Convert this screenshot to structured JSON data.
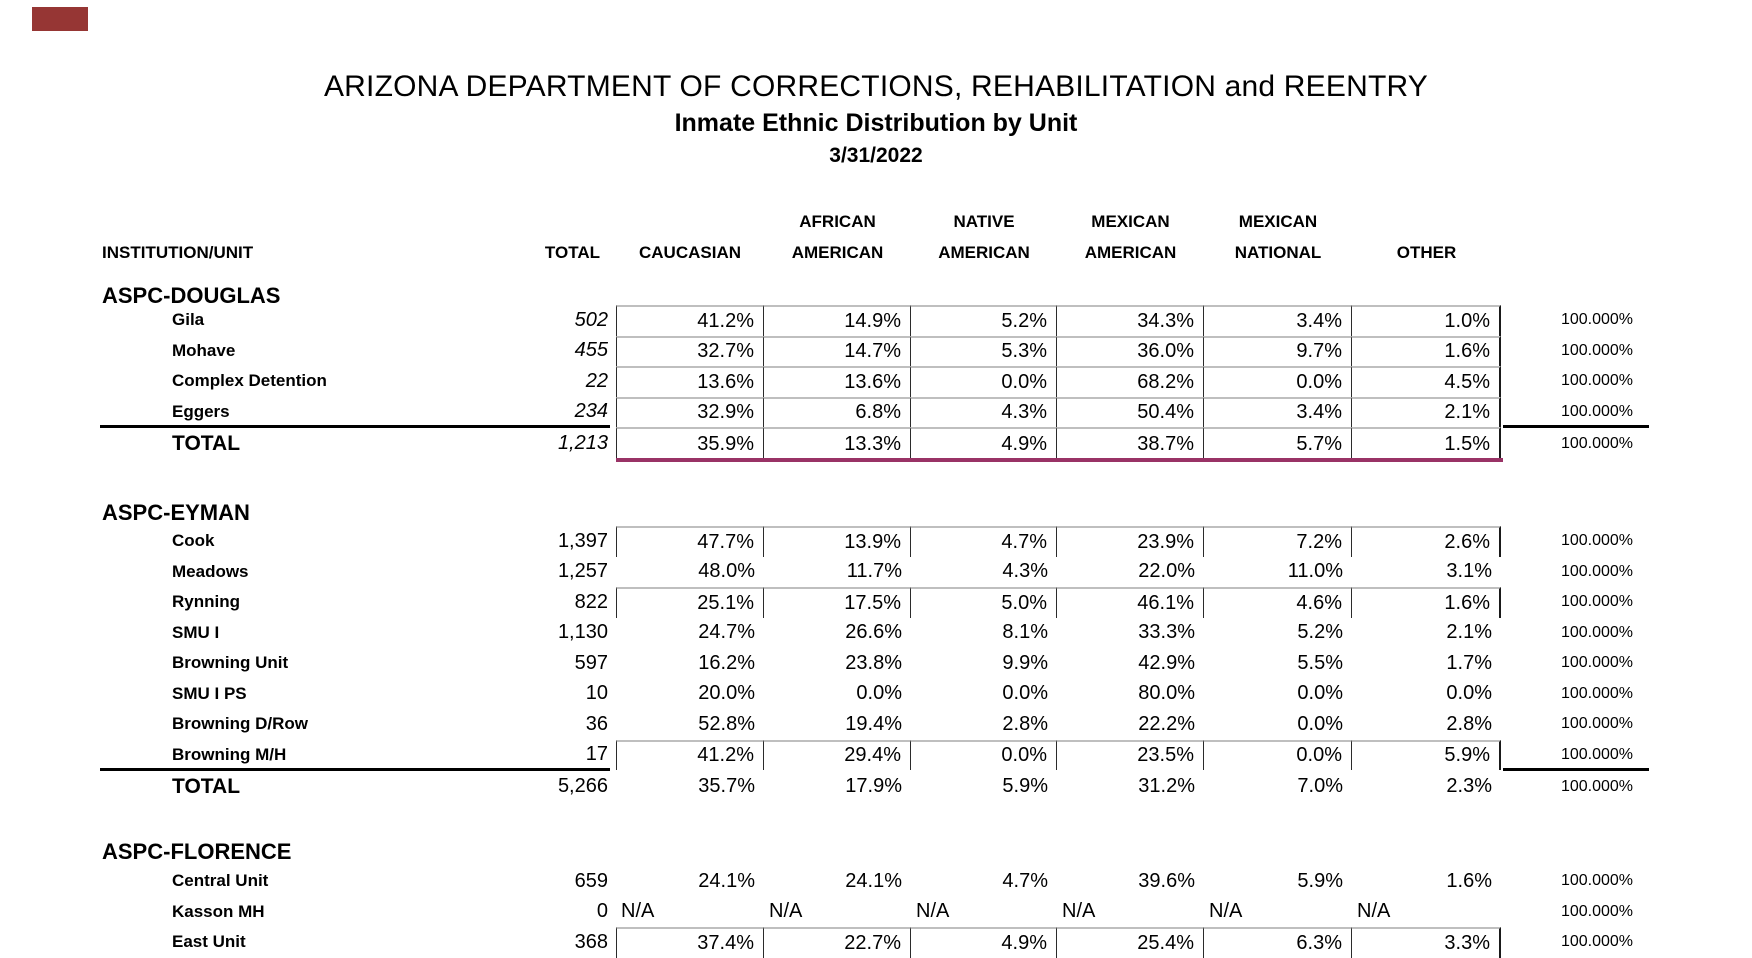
{
  "colors": {
    "corner_marker": "#963634",
    "maroon_rule": "#993366",
    "grid_line": "#bfbfbf",
    "cell_border": "#2b2b2b"
  },
  "header": {
    "title": "ARIZONA DEPARTMENT OF CORRECTIONS, REHABILITATION and REENTRY",
    "subtitle": "Inmate Ethnic Distribution by Unit",
    "date": "3/31/2022"
  },
  "table": {
    "unit_header": "INSTITUTION/UNIT",
    "total_header": "TOTAL",
    "ethnic_headers": [
      {
        "line1": "",
        "line2": "CAUCASIAN"
      },
      {
        "line1": "AFRICAN",
        "line2": "AMERICAN"
      },
      {
        "line1": "NATIVE",
        "line2": "AMERICAN"
      },
      {
        "line1": "MEXICAN",
        "line2": "AMERICAN"
      },
      {
        "line1": "MEXICAN",
        "line2": "NATIONAL"
      },
      {
        "line1": "",
        "line2": "OTHER"
      }
    ],
    "total_label": "TOTAL",
    "row_sum": "100.000%",
    "sections": [
      {
        "name": "ASPC-DOUGLAS",
        "italic_totals": true,
        "rows": [
          {
            "unit": "Gila",
            "total": "502",
            "values": [
              "41.2%",
              "14.9%",
              "5.2%",
              "34.3%",
              "3.4%",
              "1.0%"
            ],
            "bordered": true
          },
          {
            "unit": "Mohave",
            "total": "455",
            "values": [
              "32.7%",
              "14.7%",
              "5.3%",
              "36.0%",
              "9.7%",
              "1.6%"
            ],
            "bordered": true
          },
          {
            "unit": "Complex Detention",
            "total": "22",
            "values": [
              "13.6%",
              "13.6%",
              "0.0%",
              "68.2%",
              "0.0%",
              "4.5%"
            ],
            "bordered": true
          },
          {
            "unit": "Eggers",
            "total": "234",
            "values": [
              "32.9%",
              "6.8%",
              "4.3%",
              "50.4%",
              "3.4%",
              "2.1%"
            ],
            "bordered": true,
            "underline": true
          }
        ],
        "total_row": {
          "total": "1,213",
          "values": [
            "35.9%",
            "13.3%",
            "4.9%",
            "38.7%",
            "5.7%",
            "1.5%"
          ],
          "bordered": true,
          "maroon": true
        }
      },
      {
        "name": "ASPC-EYMAN",
        "italic_totals": false,
        "rows": [
          {
            "unit": "Cook",
            "total": "1,397",
            "values": [
              "47.7%",
              "13.9%",
              "4.7%",
              "23.9%",
              "7.2%",
              "2.6%"
            ],
            "bordered": true
          },
          {
            "unit": "Meadows",
            "total": "1,257",
            "values": [
              "48.0%",
              "11.7%",
              "4.3%",
              "22.0%",
              "11.0%",
              "3.1%"
            ],
            "bordered": false
          },
          {
            "unit": "Rynning",
            "total": "822",
            "values": [
              "25.1%",
              "17.5%",
              "5.0%",
              "46.1%",
              "4.6%",
              "1.6%"
            ],
            "bordered": true
          },
          {
            "unit": "SMU I",
            "total": "1,130",
            "values": [
              "24.7%",
              "26.6%",
              "8.1%",
              "33.3%",
              "5.2%",
              "2.1%"
            ],
            "bordered": false
          },
          {
            "unit": "Browning Unit",
            "total": "597",
            "values": [
              "16.2%",
              "23.8%",
              "9.9%",
              "42.9%",
              "5.5%",
              "1.7%"
            ],
            "bordered": false
          },
          {
            "unit": "SMU I PS",
            "total": "10",
            "values": [
              "20.0%",
              "0.0%",
              "0.0%",
              "80.0%",
              "0.0%",
              "0.0%"
            ],
            "bordered": false
          },
          {
            "unit": "Browning D/Row",
            "total": "36",
            "values": [
              "52.8%",
              "19.4%",
              "2.8%",
              "22.2%",
              "0.0%",
              "2.8%"
            ],
            "bordered": false
          },
          {
            "unit": "Browning M/H",
            "total": "17",
            "values": [
              "41.2%",
              "29.4%",
              "0.0%",
              "23.5%",
              "0.0%",
              "5.9%"
            ],
            "bordered": true,
            "underline": true
          }
        ],
        "total_row": {
          "total": "5,266",
          "values": [
            "35.7%",
            "17.9%",
            "5.9%",
            "31.2%",
            "7.0%",
            "2.3%"
          ],
          "bordered": false,
          "maroon": false
        }
      },
      {
        "name": "ASPC-FLORENCE",
        "italic_totals": false,
        "rows": [
          {
            "unit": "Central Unit",
            "total": "659",
            "values": [
              "24.1%",
              "24.1%",
              "4.7%",
              "39.6%",
              "5.9%",
              "1.6%"
            ],
            "bordered": false
          },
          {
            "unit": "Kasson MH",
            "total": "0",
            "values": [
              "N/A",
              "N/A",
              "N/A",
              "N/A",
              "N/A",
              "N/A"
            ],
            "bordered": false,
            "na": true
          },
          {
            "unit": "East Unit",
            "total": "368",
            "values": [
              "37.4%",
              "22.7%",
              "4.9%",
              "25.4%",
              "6.3%",
              "3.3%"
            ],
            "bordered": true
          }
        ],
        "total_row": null
      }
    ]
  }
}
